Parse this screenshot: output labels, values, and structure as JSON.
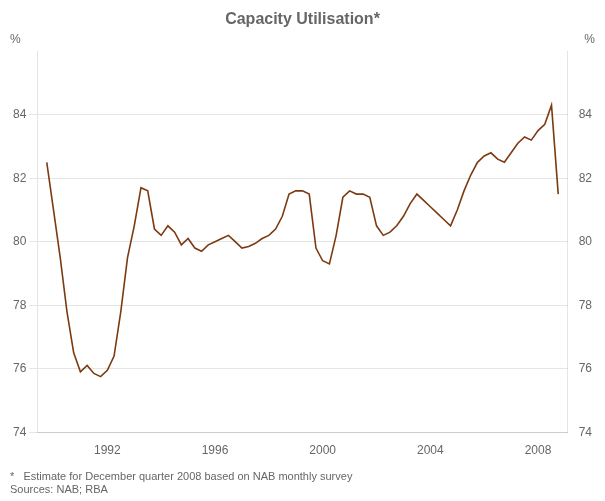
{
  "chart_data": {
    "type": "line",
    "title": "Capacity Utilisation*",
    "ylabel": "%",
    "y2label": "%",
    "footnotes": [
      "*   Estimate for December quarter 2008 based on NAB monthly survey",
      "Sources: NAB; RBA"
    ],
    "xlim": [
      1989.4,
      2009.1
    ],
    "xticks": [
      1992,
      1996,
      2000,
      2004,
      2008
    ],
    "ylim": [
      74,
      86
    ],
    "yticks": [
      74,
      76,
      78,
      80,
      82,
      84
    ],
    "y2lim": [
      74,
      86
    ],
    "y2ticks": [
      74,
      76,
      78,
      80,
      82,
      84
    ],
    "grid": "y",
    "x": [
      1989.75,
      1990.0,
      1990.25,
      1990.5,
      1990.75,
      1991.0,
      1991.25,
      1991.5,
      1991.75,
      1992.0,
      1992.25,
      1992.5,
      1992.75,
      1993.0,
      1993.25,
      1993.5,
      1993.75,
      1994.0,
      1994.25,
      1994.5,
      1994.75,
      1995.0,
      1995.25,
      1995.5,
      1995.75,
      1996.0,
      1996.25,
      1996.5,
      1996.75,
      1997.0,
      1997.25,
      1997.5,
      1997.75,
      1998.0,
      1998.25,
      1998.5,
      1998.75,
      1999.0,
      1999.25,
      1999.5,
      1999.75,
      2000.0,
      2000.25,
      2000.5,
      2000.75,
      2001.0,
      2001.25,
      2001.5,
      2001.75,
      2002.0,
      2002.25,
      2002.5,
      2002.75,
      2003.0,
      2003.25,
      2003.5,
      2003.75,
      2004.0,
      2004.25,
      2004.5,
      2004.75,
      2005.0,
      2005.25,
      2005.5,
      2005.75,
      2006.0,
      2006.25,
      2006.5,
      2006.75,
      2007.0,
      2007.25,
      2007.5,
      2007.75,
      2008.0,
      2008.25,
      2008.5,
      2008.75
    ],
    "series": [
      {
        "color": "#7B3A10",
        "values": [
          82.5,
          81.0,
          79.5,
          77.8,
          76.5,
          75.9,
          76.1,
          75.85,
          75.75,
          75.95,
          76.4,
          77.8,
          79.5,
          80.5,
          81.7,
          81.6,
          80.4,
          80.2,
          80.5,
          80.3,
          79.9,
          80.1,
          79.8,
          79.7,
          79.9,
          80.0,
          80.1,
          80.2,
          80.0,
          79.8,
          79.85,
          79.95,
          80.1,
          80.2,
          80.4,
          80.8,
          81.5,
          81.6,
          81.6,
          81.5,
          79.8,
          79.4,
          79.3,
          80.2,
          81.4,
          81.6,
          81.5,
          81.5,
          81.4,
          80.5,
          80.2,
          80.3,
          80.5,
          80.8,
          81.2,
          81.5,
          81.3,
          81.1,
          80.9,
          80.7,
          80.5,
          81.0,
          81.6,
          82.1,
          82.5,
          82.7,
          82.8,
          82.6,
          82.5,
          82.8,
          83.1,
          83.3,
          83.2,
          83.5,
          83.7,
          84.3,
          81.5
        ]
      }
    ]
  }
}
